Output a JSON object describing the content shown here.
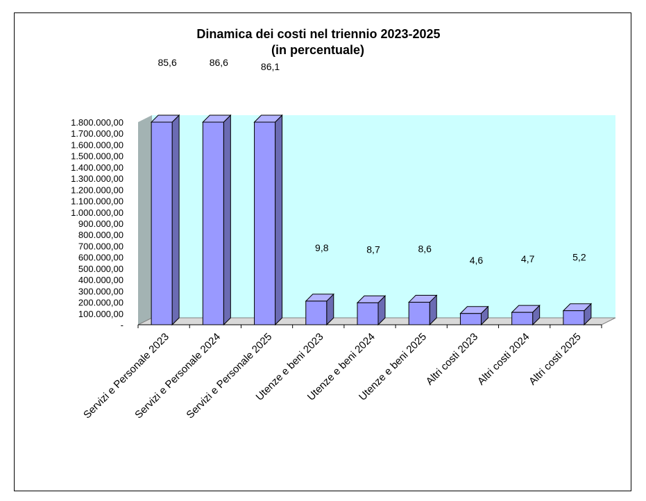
{
  "chart_data": {
    "type": "bar",
    "title": "Dinamica dei costi nel triennio 2023-2025",
    "subtitle": "(in percentuale)",
    "categories": [
      "Servizi e Personale 2023",
      "Servizi e Personale 2024",
      "Servizi e Personale 2025",
      "Utenze e beni 2023",
      "Utenze e beni 2024",
      "Utenze e beni 2025",
      "Altri costi 2023",
      "Altri costi 2024",
      "Altri costi 2025"
    ],
    "values": [
      1800000,
      1800000,
      1800000,
      210000,
      195000,
      200000,
      100000,
      110000,
      125000
    ],
    "data_labels": [
      "85,6",
      "86,6",
      "86,1",
      "9,8",
      "8,7",
      "8,6",
      "4,6",
      "4,7",
      "5,2"
    ],
    "y_ticks": [
      "-",
      "100.000,00",
      "200.000,00",
      "300.000,00",
      "400.000,00",
      "500.000,00",
      "600.000,00",
      "700.000,00",
      "800.000,00",
      "900.000,00",
      "1.000.000,00",
      "1.100.000,00",
      "1.200.000,00",
      "1.300.000,00",
      "1.400.000,00",
      "1.500.000,00",
      "1.600.000,00",
      "1.700.000,00",
      "1.800.000,00"
    ],
    "ylim": [
      0,
      1800000
    ],
    "xlabel": "",
    "ylabel": "",
    "grid": false,
    "legend": "none",
    "colors": {
      "bar_front": "#9999ff",
      "bar_top": "#b3b3ff",
      "bar_side": "#6b6bb3",
      "back_wall": "#ccffff",
      "side_wall": "#a3b3b3",
      "floor": "#d9d9d9"
    }
  }
}
